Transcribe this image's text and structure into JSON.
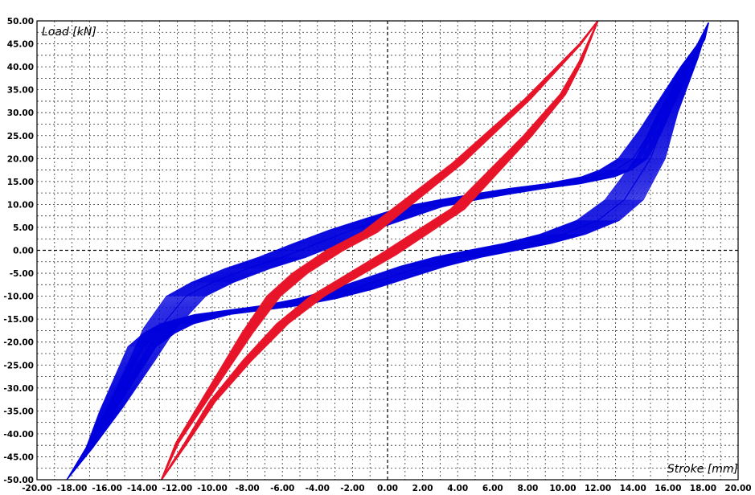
{
  "chart_data": {
    "type": "line",
    "title": "",
    "xlabel": "Stroke [mm]",
    "ylabel": "Load [kN]",
    "xlim": [
      -20,
      20
    ],
    "ylim": [
      -50,
      50
    ],
    "x_step": 2,
    "y_step": 5,
    "x_ticks": [
      "-20.00",
      "-18.00",
      "-16.00",
      "-14.00",
      "-12.00",
      "-10.00",
      "-8.00",
      "-6.00",
      "-4.00",
      "-2.00",
      "0.00",
      "2.00",
      "4.00",
      "6.00",
      "8.00",
      "10.00",
      "12.00",
      "14.00",
      "16.00",
      "18.00",
      "20.00"
    ],
    "y_ticks": [
      "50.00",
      "45.00",
      "40.00",
      "35.00",
      "30.00",
      "25.00",
      "20.00",
      "15.00",
      "10.00",
      "5.00",
      "0.00",
      "-5.00",
      "-10.00",
      "-15.00",
      "-20.00",
      "-25.00",
      "-30.00",
      "-35.00",
      "-40.00",
      "-45.00",
      "-50.00"
    ],
    "grid": true,
    "legend": "none",
    "series": [
      {
        "color": "#0000dd",
        "style": "hysteresis-loops",
        "loops": 40,
        "width_spread": 3.5,
        "upper_branch": [
          [
            -18.3,
            -50
          ],
          [
            -17,
            -43
          ],
          [
            -15.5,
            -34
          ],
          [
            -14,
            -24
          ],
          [
            -13,
            -17
          ],
          [
            -11.5,
            -10
          ],
          [
            -10,
            -7
          ],
          [
            -8,
            -4
          ],
          [
            -6,
            -1.5
          ],
          [
            -4,
            1.5
          ],
          [
            -2,
            4.5
          ],
          [
            0,
            7
          ],
          [
            2,
            9.5
          ],
          [
            4,
            11
          ],
          [
            6,
            12.3
          ],
          [
            8,
            13.5
          ],
          [
            10,
            14.5
          ],
          [
            12,
            16
          ],
          [
            13,
            17.5
          ],
          [
            14,
            20
          ],
          [
            15,
            26
          ],
          [
            16,
            33
          ],
          [
            17,
            40
          ],
          [
            18,
            46
          ],
          [
            18.3,
            49.5
          ]
        ],
        "lower_branch": [
          [
            18.3,
            49.5
          ],
          [
            17.5,
            42
          ],
          [
            16,
            30
          ],
          [
            15,
            20
          ],
          [
            13.5,
            11
          ],
          [
            12,
            6.5
          ],
          [
            10,
            3.5
          ],
          [
            8,
            1.5
          ],
          [
            6,
            0
          ],
          [
            4,
            -1.5
          ],
          [
            2,
            -3.5
          ],
          [
            0,
            -6
          ],
          [
            -2,
            -8.5
          ],
          [
            -4,
            -10.5
          ],
          [
            -6,
            -12
          ],
          [
            -8,
            -13
          ],
          [
            -10,
            -14
          ],
          [
            -12,
            -16
          ],
          [
            -13,
            -18
          ],
          [
            -14,
            -21
          ],
          [
            -15,
            -28
          ],
          [
            -16,
            -35
          ],
          [
            -17,
            -43
          ],
          [
            -18.3,
            -50
          ]
        ]
      },
      {
        "color": "#e8152a",
        "style": "hysteresis-loops",
        "loops": 25,
        "width_spread": 1.2,
        "upper_branch": [
          [
            -12.9,
            -50
          ],
          [
            -12,
            -42
          ],
          [
            -10.5,
            -33
          ],
          [
            -9,
            -24
          ],
          [
            -8,
            -18
          ],
          [
            -6.5,
            -10
          ],
          [
            -5,
            -5
          ],
          [
            -3,
            0
          ],
          [
            -1,
            4
          ],
          [
            0,
            7
          ],
          [
            2,
            13
          ],
          [
            4,
            19
          ],
          [
            6,
            26
          ],
          [
            8,
            33
          ],
          [
            10,
            41
          ],
          [
            11,
            45
          ],
          [
            12,
            50
          ]
        ],
        "lower_branch": [
          [
            12,
            50
          ],
          [
            11,
            41
          ],
          [
            10,
            34
          ],
          [
            8,
            25
          ],
          [
            6,
            17
          ],
          [
            4,
            9
          ],
          [
            2,
            4
          ],
          [
            0,
            -1
          ],
          [
            -2,
            -5.5
          ],
          [
            -4,
            -10
          ],
          [
            -6,
            -16
          ],
          [
            -8,
            -24
          ],
          [
            -10,
            -33
          ],
          [
            -11.5,
            -42
          ],
          [
            -12.9,
            -50
          ]
        ]
      }
    ]
  }
}
